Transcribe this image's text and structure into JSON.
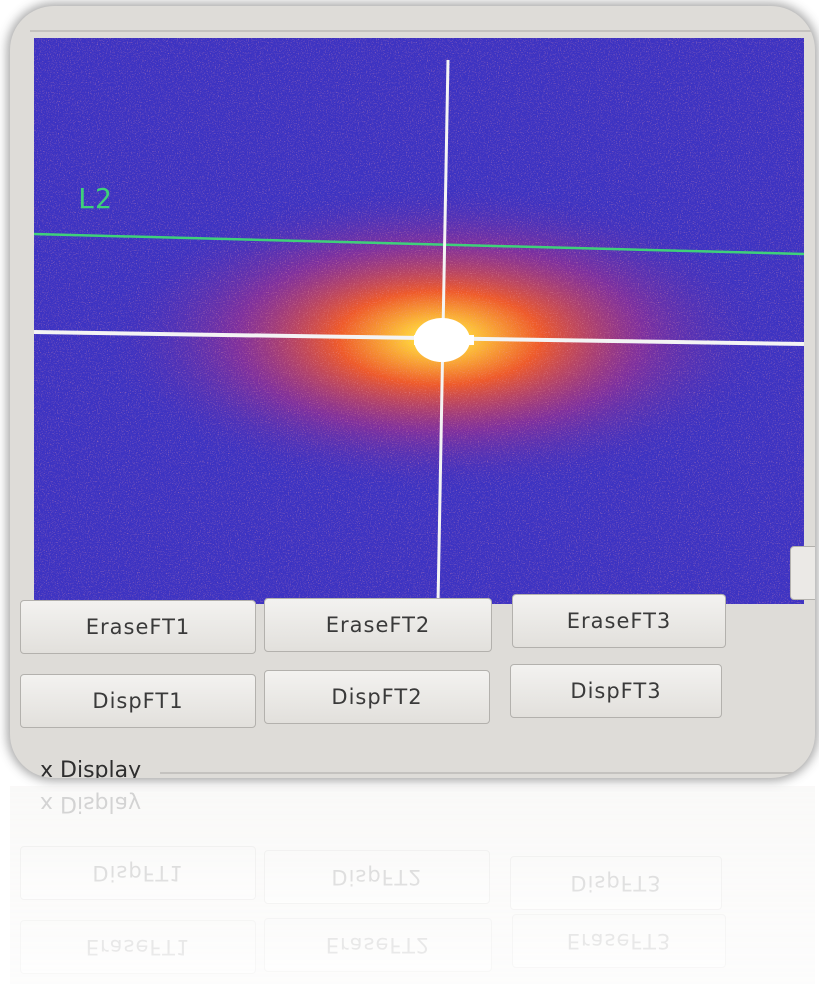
{
  "overlay_label": "L2",
  "buttons": {
    "erase": [
      "EraseFT1",
      "EraseFT2",
      "EraseFT3"
    ],
    "disp": [
      "DispFT1",
      "DispFT2",
      "DispFT3"
    ]
  },
  "section_label": "x Display"
}
